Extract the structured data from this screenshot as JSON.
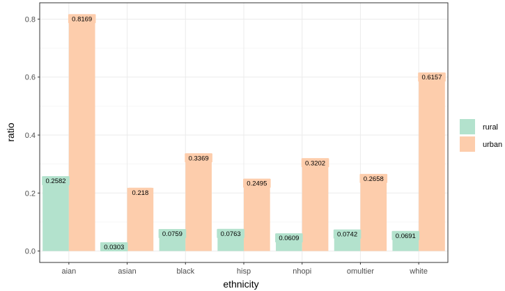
{
  "chart_data": {
    "type": "bar",
    "xlabel": "ethnicity",
    "ylabel": "ratio",
    "categories": [
      "aian",
      "asian",
      "black",
      "hisp",
      "nhopi",
      "omultier",
      "white"
    ],
    "series": [
      {
        "name": "rural",
        "values": [
          0.2582,
          0.0303,
          0.0759,
          0.0763,
          0.0609,
          0.0742,
          0.0691
        ],
        "color": "#b3e2cd"
      },
      {
        "name": "urban",
        "values": [
          0.8169,
          0.218,
          0.3369,
          0.2495,
          0.3202,
          0.2658,
          0.6157
        ],
        "color": "#fdcdac"
      }
    ],
    "ylim": [
      -0.0394,
      0.8563
    ],
    "yticks": [
      "0.0",
      "0.2",
      "0.4",
      "0.6",
      "0.8"
    ],
    "value_labels": [
      [
        "0.2582",
        "0.0303",
        "0.0759",
        "0.0763",
        "0.0609",
        "0.0742",
        "0.0691"
      ],
      [
        "0.8169",
        "0.218",
        "0.3369",
        "0.2495",
        "0.3202",
        "0.2658",
        "0.6157"
      ]
    ],
    "grid": true,
    "legend_position": "right"
  }
}
